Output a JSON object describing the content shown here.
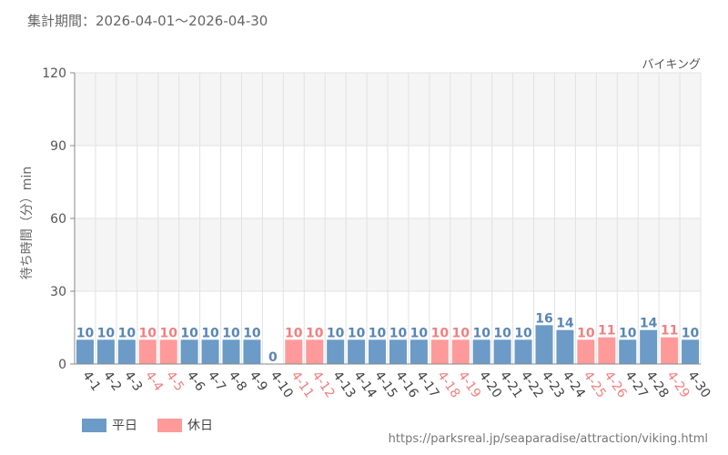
{
  "header": {
    "period_label": "集計期間：2026-04-01～2026-04-30",
    "attraction_name": "バイキング"
  },
  "footer": {
    "url": "https://parksreal.jp/seaparadise/attraction/viking.html"
  },
  "colors": {
    "weekday": "#6b9bc6",
    "weekday_label": "#5a86b4",
    "holiday": "#ff9a9a",
    "holiday_label": "#f08080",
    "band": "#f5f5f5",
    "grid": "#e2e2e2"
  },
  "chart_data": {
    "type": "bar",
    "title": "",
    "xlabel": "",
    "ylabel": "待ち時間（分）min",
    "ylim": [
      0,
      120
    ],
    "yticks": [
      0,
      30,
      60,
      90,
      120
    ],
    "grid": true,
    "legend_position": "bottom-left",
    "categories": [
      "4-1",
      "4-2",
      "4-3",
      "4-4",
      "4-5",
      "4-6",
      "4-7",
      "4-8",
      "4-9",
      "4-10",
      "4-11",
      "4-12",
      "4-13",
      "4-14",
      "4-15",
      "4-16",
      "4-17",
      "4-18",
      "4-19",
      "4-20",
      "4-21",
      "4-22",
      "4-23",
      "4-24",
      "4-25",
      "4-26",
      "4-27",
      "4-28",
      "4-29",
      "4-30"
    ],
    "values": [
      10,
      10,
      10,
      10,
      10,
      10,
      10,
      10,
      10,
      0,
      10,
      10,
      10,
      10,
      10,
      10,
      10,
      10,
      10,
      10,
      10,
      10,
      16,
      14,
      10,
      11,
      10,
      14,
      11,
      10
    ],
    "day_type": [
      "weekday",
      "weekday",
      "weekday",
      "holiday",
      "holiday",
      "weekday",
      "weekday",
      "weekday",
      "weekday",
      "weekday",
      "holiday",
      "holiday",
      "weekday",
      "weekday",
      "weekday",
      "weekday",
      "weekday",
      "holiday",
      "holiday",
      "weekday",
      "weekday",
      "weekday",
      "weekday",
      "weekday",
      "holiday",
      "holiday",
      "weekday",
      "weekday",
      "holiday",
      "weekday"
    ],
    "legend": [
      {
        "key": "weekday",
        "label": "平日"
      },
      {
        "key": "holiday",
        "label": "休日"
      }
    ]
  }
}
